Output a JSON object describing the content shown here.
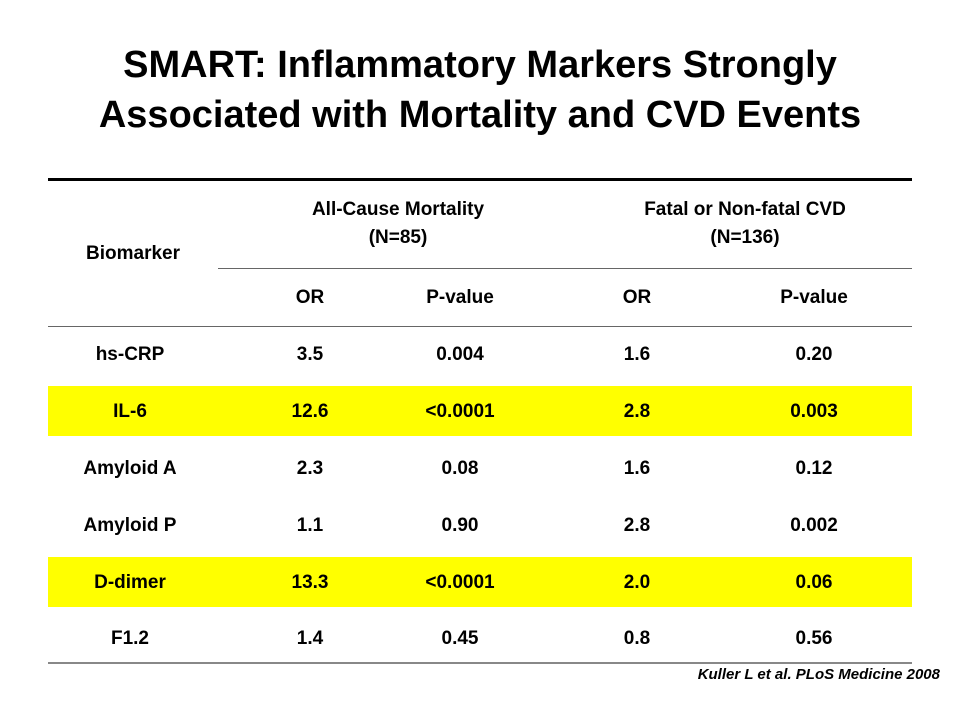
{
  "title": {
    "line1": "SMART: Inflammatory Markers Strongly",
    "line2": "Associated with Mortality and CVD Events"
  },
  "table": {
    "biomarker_header": "Biomarker",
    "group1": {
      "line1": "All-Cause Mortality",
      "line2": "(N=85)"
    },
    "group2": {
      "line1": "Fatal or Non-fatal CVD",
      "line2": "(N=136)"
    },
    "subheaders": [
      "OR",
      "P-value",
      "OR",
      "P-value"
    ],
    "rows": [
      [
        "hs-CRP",
        "3.5",
        "0.004",
        "1.6",
        "0.20"
      ],
      [
        "IL-6",
        "12.6",
        "<0.0001",
        "2.8",
        "0.003"
      ],
      [
        "Amyloid A",
        "2.3",
        "0.08",
        "1.6",
        "0.12"
      ],
      [
        "Amyloid P",
        "1.1",
        "0.90",
        "2.8",
        "0.002"
      ],
      [
        "D-dimer",
        "13.3",
        "<0.0001",
        "2.0",
        "0.06"
      ],
      [
        "F1.2",
        "1.4",
        "0.45",
        "0.8",
        "0.56"
      ]
    ],
    "highlighted_rows": [
      "IL-6",
      "D-dimer"
    ],
    "highlight_color": "#ffff00"
  },
  "citation": "Kuller L et al. PLoS Medicine  2008"
}
